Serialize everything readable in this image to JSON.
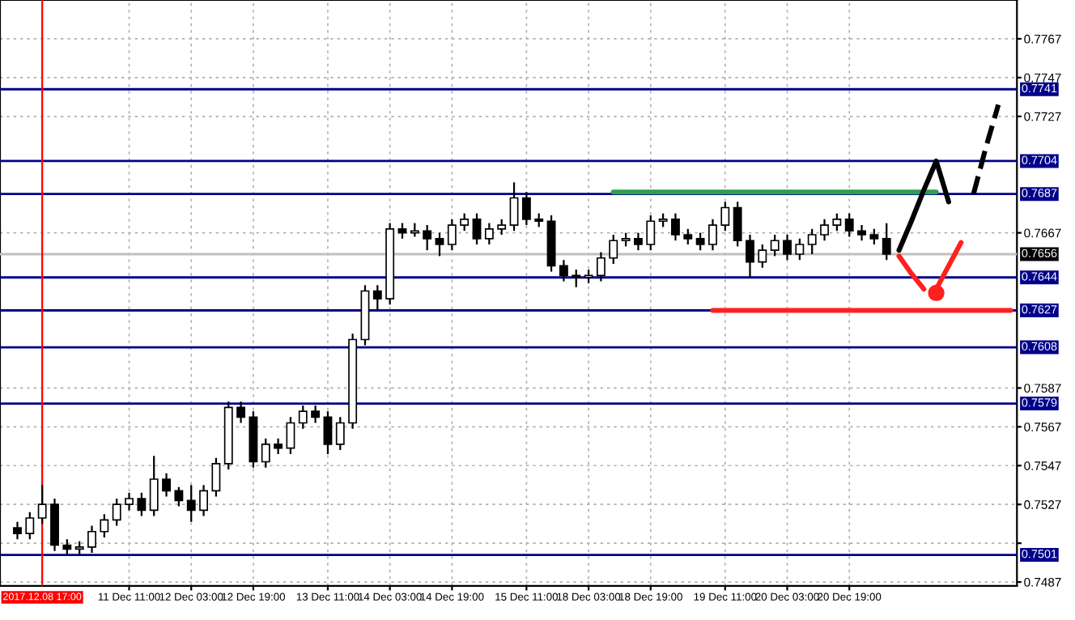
{
  "chart_data": {
    "type": "candlestick",
    "categories": [
      null,
      null,
      "2017.12.08 17:00",
      null,
      null,
      null,
      null,
      null,
      null,
      "11 Dec 11:00",
      null,
      null,
      null,
      null,
      "12 Dec 03:00",
      null,
      null,
      null,
      null,
      "12 Dec 19:00",
      null,
      null,
      null,
      null,
      null,
      "13 Dec 11:00",
      null,
      null,
      null,
      null,
      "14 Dec 03:00",
      null,
      null,
      null,
      null,
      "14 Dec 19:00",
      null,
      null,
      null,
      null,
      null,
      "15 Dec 11:00",
      null,
      null,
      null,
      null,
      "18 Dec 03:00",
      null,
      null,
      null,
      null,
      "18 Dec 19:00",
      null,
      null,
      null,
      null,
      null,
      "19 Dec 11:00",
      null,
      null,
      null,
      null,
      "20 Dec 03:00",
      null,
      null,
      null,
      null,
      "20 Dec 19:00",
      null,
      null,
      null,
      null,
      null,
      null,
      null,
      null,
      null,
      null,
      null,
      null,
      null
    ],
    "ohlc": [
      [
        0.7515,
        0.7518,
        0.7509,
        0.7512
      ],
      [
        0.7512,
        0.7523,
        0.7509,
        0.752
      ],
      [
        0.752,
        0.7537,
        0.7517,
        0.7527
      ],
      [
        0.7527,
        0.753,
        0.7503,
        0.7506
      ],
      [
        0.7506,
        0.7509,
        0.7501,
        0.7504
      ],
      [
        0.7504,
        0.7508,
        0.7501,
        0.7505
      ],
      [
        0.7505,
        0.7516,
        0.7502,
        0.7513
      ],
      [
        0.7513,
        0.7522,
        0.751,
        0.7519
      ],
      [
        0.7519,
        0.753,
        0.7516,
        0.7527
      ],
      [
        0.7527,
        0.7533,
        0.7524,
        0.753
      ],
      [
        0.753,
        0.7533,
        0.7521,
        0.7524
      ],
      [
        0.7524,
        0.7552,
        0.7521,
        0.754
      ],
      [
        0.754,
        0.7543,
        0.7531,
        0.7534
      ],
      [
        0.7534,
        0.7536,
        0.7526,
        0.7529
      ],
      [
        0.7529,
        0.7537,
        0.7518,
        0.7524
      ],
      [
        0.7524,
        0.7537,
        0.7521,
        0.7534
      ],
      [
        0.7534,
        0.7551,
        0.7531,
        0.7548
      ],
      [
        0.7548,
        0.758,
        0.7545,
        0.7577
      ],
      [
        0.7577,
        0.758,
        0.7569,
        0.7572
      ],
      [
        0.7572,
        0.7575,
        0.7546,
        0.7549
      ],
      [
        0.7549,
        0.7561,
        0.7546,
        0.7558
      ],
      [
        0.7558,
        0.7561,
        0.7553,
        0.7556
      ],
      [
        0.7556,
        0.7572,
        0.7553,
        0.7569
      ],
      [
        0.7569,
        0.7578,
        0.7566,
        0.7575
      ],
      [
        0.7575,
        0.7578,
        0.7569,
        0.7572
      ],
      [
        0.7572,
        0.7575,
        0.7553,
        0.7558
      ],
      [
        0.7558,
        0.7572,
        0.7555,
        0.7569
      ],
      [
        0.7569,
        0.7615,
        0.7566,
        0.7612
      ],
      [
        0.7612,
        0.764,
        0.7609,
        0.7637
      ],
      [
        0.7637,
        0.764,
        0.7627,
        0.7633
      ],
      [
        0.7633,
        0.7672,
        0.763,
        0.7669
      ],
      [
        0.7669,
        0.7672,
        0.7664,
        0.7667
      ],
      [
        0.7667,
        0.7672,
        0.7665,
        0.7668
      ],
      [
        0.7668,
        0.7671,
        0.7658,
        0.7664
      ],
      [
        0.7664,
        0.7667,
        0.7655,
        0.7661
      ],
      [
        0.7661,
        0.7674,
        0.7658,
        0.7671
      ],
      [
        0.7671,
        0.7677,
        0.7668,
        0.7674
      ],
      [
        0.7674,
        0.7677,
        0.7661,
        0.7664
      ],
      [
        0.7664,
        0.7672,
        0.7661,
        0.7669
      ],
      [
        0.7669,
        0.7674,
        0.7666,
        0.7671
      ],
      [
        0.7671,
        0.7693,
        0.7668,
        0.7685
      ],
      [
        0.7685,
        0.7688,
        0.7671,
        0.7674
      ],
      [
        0.7674,
        0.7677,
        0.767,
        0.7673
      ],
      [
        0.7673,
        0.7676,
        0.7647,
        0.765
      ],
      [
        0.765,
        0.7653,
        0.7642,
        0.7645
      ],
      [
        0.7645,
        0.7648,
        0.7639,
        0.7644
      ],
      [
        0.7644,
        0.7648,
        0.7641,
        0.7645
      ],
      [
        0.7645,
        0.7657,
        0.7642,
        0.7654
      ],
      [
        0.7654,
        0.7666,
        0.7651,
        0.7663
      ],
      [
        0.7663,
        0.7667,
        0.766,
        0.7664
      ],
      [
        0.7664,
        0.7667,
        0.7658,
        0.7661
      ],
      [
        0.7661,
        0.7676,
        0.7658,
        0.7673
      ],
      [
        0.7673,
        0.7677,
        0.767,
        0.7674
      ],
      [
        0.7674,
        0.7677,
        0.7663,
        0.7666
      ],
      [
        0.7666,
        0.7669,
        0.7661,
        0.7664
      ],
      [
        0.7664,
        0.7667,
        0.7658,
        0.7661
      ],
      [
        0.7661,
        0.7674,
        0.7658,
        0.7671
      ],
      [
        0.7671,
        0.7683,
        0.7668,
        0.768
      ],
      [
        0.768,
        0.7683,
        0.766,
        0.7663
      ],
      [
        0.7663,
        0.7666,
        0.7644,
        0.7652
      ],
      [
        0.7652,
        0.7661,
        0.7649,
        0.7658
      ],
      [
        0.7658,
        0.7666,
        0.7655,
        0.7663
      ],
      [
        0.7663,
        0.7666,
        0.7653,
        0.7656
      ],
      [
        0.7656,
        0.7664,
        0.7653,
        0.7661
      ],
      [
        0.7661,
        0.7669,
        0.7656,
        0.7666
      ],
      [
        0.7666,
        0.7674,
        0.7663,
        0.7671
      ],
      [
        0.7671,
        0.7677,
        0.7668,
        0.7674
      ],
      [
        0.7674,
        0.7677,
        0.7665,
        0.7668
      ],
      [
        0.7668,
        0.7671,
        0.7663,
        0.7666
      ],
      [
        0.7666,
        0.7669,
        0.7661,
        0.7664
      ],
      [
        0.7664,
        0.7672,
        0.7653,
        0.7656
      ],
      null,
      null,
      null,
      null,
      null,
      null,
      null,
      null,
      null,
      null
    ],
    "series": [
      {
        "type": "line",
        "color": "#2e9e4f",
        "values": [
          null,
          null,
          null,
          null,
          null,
          null,
          null,
          null,
          null,
          null,
          null,
          null,
          null,
          null,
          null,
          null,
          null,
          null,
          null,
          null,
          null,
          null,
          null,
          null,
          null,
          null,
          null,
          null,
          null,
          null,
          null,
          null,
          null,
          null,
          null,
          null,
          null,
          null,
          null,
          null,
          null,
          null,
          null,
          null,
          null,
          null,
          null,
          null,
          0.7688,
          0.7688,
          0.7688,
          0.7688,
          0.7688,
          0.7688,
          0.7688,
          0.7688,
          0.7688,
          0.7688,
          0.7688,
          0.7688,
          0.7688,
          0.7688,
          0.7688,
          0.7688,
          0.7688,
          0.7688,
          0.7688,
          0.7688,
          0.7688,
          0.7688,
          0.7688,
          0.7688,
          0.7688,
          0.7688,
          0.7688,
          null,
          null,
          null,
          null,
          null,
          null
        ]
      },
      {
        "type": "line",
        "color": "#ff2020",
        "values": [
          null,
          null,
          null,
          null,
          null,
          null,
          null,
          null,
          null,
          null,
          null,
          null,
          null,
          null,
          null,
          null,
          null,
          null,
          null,
          null,
          null,
          null,
          null,
          null,
          null,
          null,
          null,
          null,
          null,
          null,
          null,
          null,
          null,
          null,
          null,
          null,
          null,
          null,
          null,
          null,
          null,
          null,
          null,
          null,
          null,
          null,
          null,
          null,
          null,
          null,
          null,
          null,
          null,
          null,
          null,
          null,
          0.7627,
          0.7627,
          0.7627,
          0.7627,
          0.7627,
          0.7627,
          0.7627,
          0.7627,
          0.7627,
          0.7627,
          0.7627,
          0.7627,
          0.7627,
          0.7627,
          0.7627,
          0.7627,
          0.7627,
          0.7627,
          0.7627,
          0.7627,
          0.7627,
          0.7627,
          0.7627,
          0.7627,
          0.7627
        ]
      },
      {
        "type": "line",
        "color": "#000000",
        "values": [
          null,
          null,
          null,
          null,
          null,
          null,
          null,
          null,
          null,
          null,
          null,
          null,
          null,
          null,
          null,
          null,
          null,
          null,
          null,
          null,
          null,
          null,
          null,
          null,
          null,
          null,
          null,
          null,
          null,
          null,
          null,
          null,
          null,
          null,
          null,
          null,
          null,
          null,
          null,
          null,
          null,
          null,
          null,
          null,
          null,
          null,
          null,
          null,
          null,
          null,
          null,
          null,
          null,
          null,
          null,
          null,
          null,
          null,
          null,
          null,
          null,
          null,
          null,
          null,
          null,
          null,
          null,
          null,
          null,
          null,
          null,
          0.7658,
          0.7673,
          0.7689,
          0.7704,
          0.7683,
          null,
          null,
          null,
          null,
          null
        ]
      },
      {
        "type": "line",
        "color": "#000000",
        "line_style": "dashed",
        "values": [
          null,
          null,
          null,
          null,
          null,
          null,
          null,
          null,
          null,
          null,
          null,
          null,
          null,
          null,
          null,
          null,
          null,
          null,
          null,
          null,
          null,
          null,
          null,
          null,
          null,
          null,
          null,
          null,
          null,
          null,
          null,
          null,
          null,
          null,
          null,
          null,
          null,
          null,
          null,
          null,
          null,
          null,
          null,
          null,
          null,
          null,
          null,
          null,
          null,
          null,
          null,
          null,
          null,
          null,
          null,
          null,
          null,
          null,
          null,
          null,
          null,
          null,
          null,
          null,
          null,
          null,
          null,
          null,
          null,
          null,
          null,
          null,
          null,
          null,
          null,
          null,
          null,
          0.7687,
          0.7711,
          0.7733,
          null
        ]
      },
      {
        "type": "line",
        "color": "#ff2020",
        "values": [
          null,
          null,
          null,
          null,
          null,
          null,
          null,
          null,
          null,
          null,
          null,
          null,
          null,
          null,
          null,
          null,
          null,
          null,
          null,
          null,
          null,
          null,
          null,
          null,
          null,
          null,
          null,
          null,
          null,
          null,
          null,
          null,
          null,
          null,
          null,
          null,
          null,
          null,
          null,
          null,
          null,
          null,
          null,
          null,
          null,
          null,
          null,
          null,
          null,
          null,
          null,
          null,
          null,
          null,
          null,
          null,
          null,
          null,
          null,
          null,
          null,
          null,
          null,
          null,
          null,
          null,
          null,
          null,
          null,
          null,
          null,
          0.7655,
          0.7646,
          0.7638,
          null,
          null,
          null,
          null,
          null,
          null,
          null
        ]
      },
      {
        "type": "scatter",
        "color": "#ff2020",
        "values": [
          null,
          null,
          null,
          null,
          null,
          null,
          null,
          null,
          null,
          null,
          null,
          null,
          null,
          null,
          null,
          null,
          null,
          null,
          null,
          null,
          null,
          null,
          null,
          null,
          null,
          null,
          null,
          null,
          null,
          null,
          null,
          null,
          null,
          null,
          null,
          null,
          null,
          null,
          null,
          null,
          null,
          null,
          null,
          null,
          null,
          null,
          null,
          null,
          null,
          null,
          null,
          null,
          null,
          null,
          null,
          null,
          null,
          null,
          null,
          null,
          null,
          null,
          null,
          null,
          null,
          null,
          null,
          null,
          null,
          null,
          null,
          null,
          null,
          null,
          0.7636,
          null,
          null,
          null,
          null,
          null,
          null
        ]
      },
      {
        "type": "line",
        "color": "#ff2020",
        "values": [
          null,
          null,
          null,
          null,
          null,
          null,
          null,
          null,
          null,
          null,
          null,
          null,
          null,
          null,
          null,
          null,
          null,
          null,
          null,
          null,
          null,
          null,
          null,
          null,
          null,
          null,
          null,
          null,
          null,
          null,
          null,
          null,
          null,
          null,
          null,
          null,
          null,
          null,
          null,
          null,
          null,
          null,
          null,
          null,
          null,
          null,
          null,
          null,
          null,
          null,
          null,
          null,
          null,
          null,
          null,
          null,
          null,
          null,
          null,
          null,
          null,
          null,
          null,
          null,
          null,
          null,
          null,
          null,
          null,
          null,
          null,
          null,
          null,
          null,
          0.7638,
          0.765,
          0.7662,
          null,
          null,
          null,
          null
        ]
      }
    ],
    "ylim": [
      0.7485,
      0.7787
    ],
    "yticks": [
      0.7487,
      {
        "value": 0.7507,
        "label": null
      },
      0.7527,
      0.7547,
      0.7567,
      0.7587,
      0.7667,
      0.7727,
      0.7747,
      0.7767
    ],
    "ref_lines": [
      {
        "axis": "y",
        "value": 0.7741,
        "label": "0.7741",
        "color": "#00008b"
      },
      {
        "axis": "y",
        "value": 0.7704,
        "label": "0.7704",
        "color": "#00008b"
      },
      {
        "axis": "y",
        "value": 0.7687,
        "label": "0.7687",
        "color": "#00008b"
      },
      {
        "axis": "y",
        "value": 0.7656,
        "label": "0.7656",
        "color": "#c0c0c0"
      },
      {
        "axis": "y",
        "value": 0.7644,
        "label": "0.7644",
        "color": "#00008b"
      },
      {
        "axis": "y",
        "value": 0.7627,
        "label": "0.7627",
        "color": "#00008b"
      },
      {
        "axis": "y",
        "value": 0.7608,
        "label": "0.7608",
        "color": "#00008b"
      },
      {
        "axis": "y",
        "value": 0.7579,
        "label": "0.7579",
        "color": "#00008b"
      },
      {
        "axis": "y",
        "value": 0.7501,
        "label": "0.7501",
        "color": "#00008b"
      },
      {
        "axis": "x",
        "value": "2017.12.08 17:00",
        "color": "#ff0000"
      }
    ],
    "grid": true
  }
}
